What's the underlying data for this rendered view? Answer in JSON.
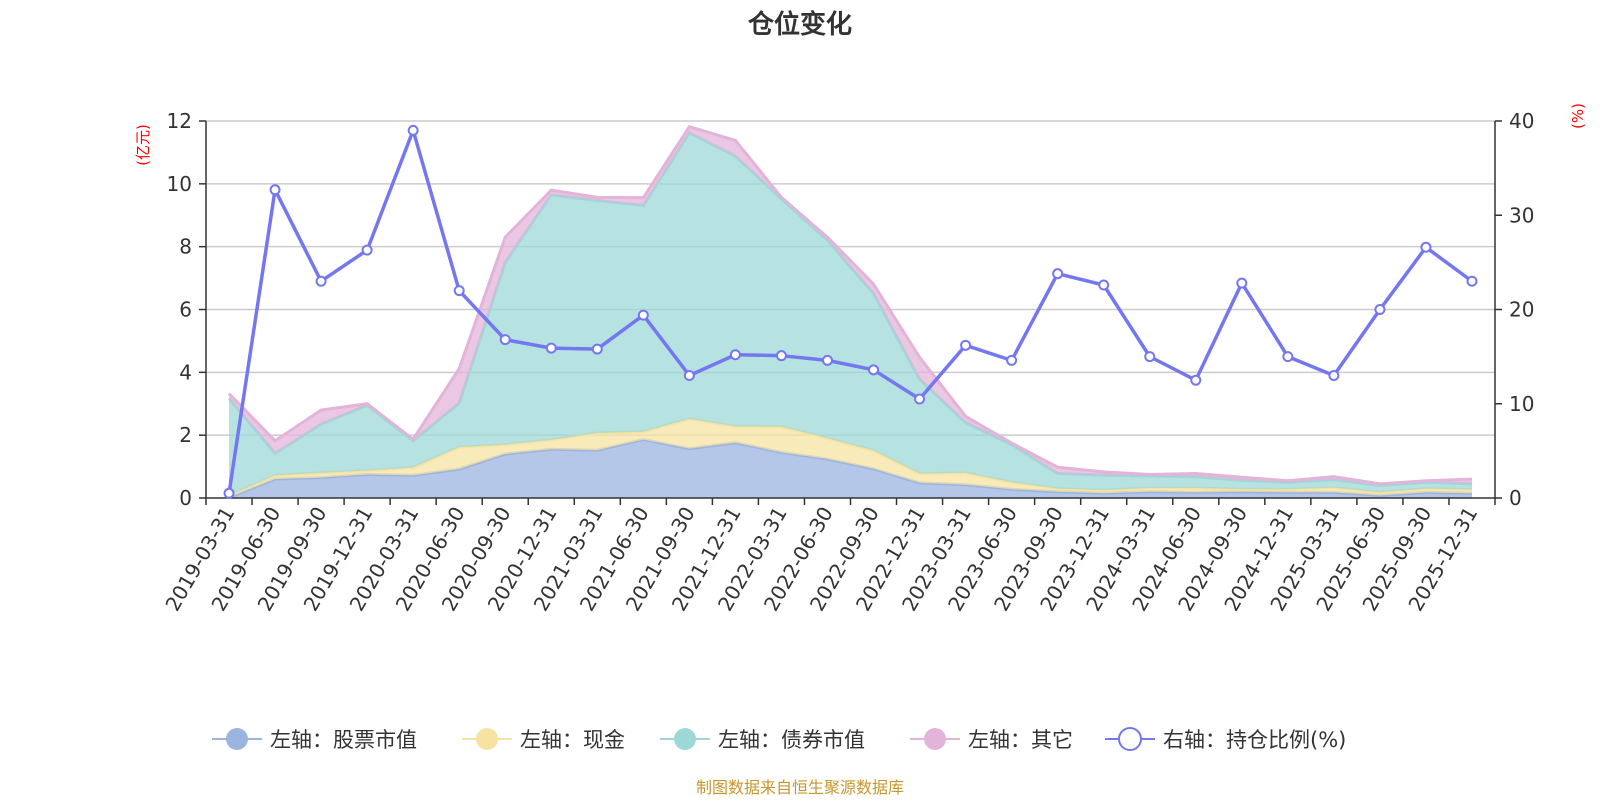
{
  "chart_data": {
    "type": "area",
    "title": "仓位变化",
    "left_unit": "(亿元)",
    "right_unit": "(%)",
    "source": "制图数据来自恒生聚源数据库",
    "categories": [
      "2019-03-31",
      "2019-06-30",
      "2019-09-30",
      "2019-12-31",
      "2020-03-31",
      "2020-06-30",
      "2020-09-30",
      "2020-12-31",
      "2021-03-31",
      "2021-06-30",
      "2021-09-30",
      "2021-12-31",
      "2022-03-31",
      "2022-06-30",
      "2022-09-30",
      "2022-12-31",
      "2023-03-31",
      "2023-06-30",
      "2023-09-30",
      "2023-12-31",
      "2024-03-31",
      "2024-06-30",
      "2024-09-30",
      "2024-12-31",
      "2025-03-31",
      "2025-06-30",
      "2025-09-30",
      "2025-12-31"
    ],
    "left_axis": {
      "min": 0,
      "max": 12,
      "ticks": [
        "0",
        "2",
        "4",
        "6",
        "8",
        "10",
        "12"
      ]
    },
    "right_axis": {
      "min": 0,
      "max": 40,
      "ticks": [
        "0",
        "10",
        "20",
        "30",
        "40"
      ]
    },
    "series": [
      {
        "name": "左轴：股票市值",
        "axis": "left",
        "stack": true,
        "color": "#9cb4e0",
        "values": [
          0.02,
          0.6,
          0.65,
          0.75,
          0.72,
          0.92,
          1.4,
          1.55,
          1.52,
          1.86,
          1.57,
          1.76,
          1.45,
          1.24,
          0.93,
          0.48,
          0.42,
          0.28,
          0.2,
          0.15,
          0.2,
          0.18,
          0.2,
          0.18,
          0.18,
          0.08,
          0.18,
          0.15
        ]
      },
      {
        "name": "左轴：现金",
        "axis": "left",
        "stack": true,
        "color": "#f6e3a1",
        "values": [
          0.05,
          0.12,
          0.15,
          0.12,
          0.25,
          0.7,
          0.3,
          0.3,
          0.55,
          0.25,
          0.95,
          0.52,
          0.82,
          0.66,
          0.58,
          0.3,
          0.38,
          0.22,
          0.1,
          0.1,
          0.12,
          0.14,
          0.08,
          0.1,
          0.15,
          0.1,
          0.12,
          0.12
        ]
      },
      {
        "name": "左轴：债券市值",
        "axis": "left",
        "stack": true,
        "color": "#9dd8d8",
        "values": [
          3.1,
          0.7,
          1.55,
          2.08,
          0.85,
          1.4,
          5.8,
          7.8,
          7.4,
          7.2,
          9.1,
          8.6,
          7.25,
          6.3,
          5.0,
          3.0,
          1.6,
          1.2,
          0.48,
          0.48,
          0.38,
          0.36,
          0.28,
          0.22,
          0.25,
          0.22,
          0.2,
          0.18
        ]
      },
      {
        "name": "左轴：其它",
        "axis": "left",
        "stack": true,
        "color": "#e3b4d9",
        "values": [
          0.15,
          0.4,
          0.45,
          0.05,
          0.05,
          1.1,
          0.8,
          0.15,
          0.1,
          0.25,
          0.2,
          0.5,
          0.05,
          0.1,
          0.3,
          0.7,
          0.2,
          0.05,
          0.2,
          0.1,
          0.05,
          0.1,
          0.1,
          0.05,
          0.1,
          0.05,
          0.05,
          0.15
        ]
      },
      {
        "name": "右轴：持仓比例(%)",
        "axis": "right",
        "type": "line",
        "color": "#7477ef",
        "values": [
          0.5,
          32.7,
          23.0,
          26.3,
          39.0,
          22.0,
          16.8,
          15.9,
          15.8,
          19.4,
          13.0,
          15.2,
          15.1,
          14.6,
          13.6,
          10.5,
          16.2,
          14.6,
          23.8,
          22.6,
          15.0,
          12.5,
          22.8,
          15.0,
          13.0,
          20.0,
          26.6,
          23.0
        ]
      }
    ],
    "legend": [
      "左轴：股票市值",
      "左轴：现金",
      "左轴：债券市值",
      "左轴：其它",
      "右轴：持仓比例(%)"
    ],
    "legend_placement": "bottom"
  }
}
